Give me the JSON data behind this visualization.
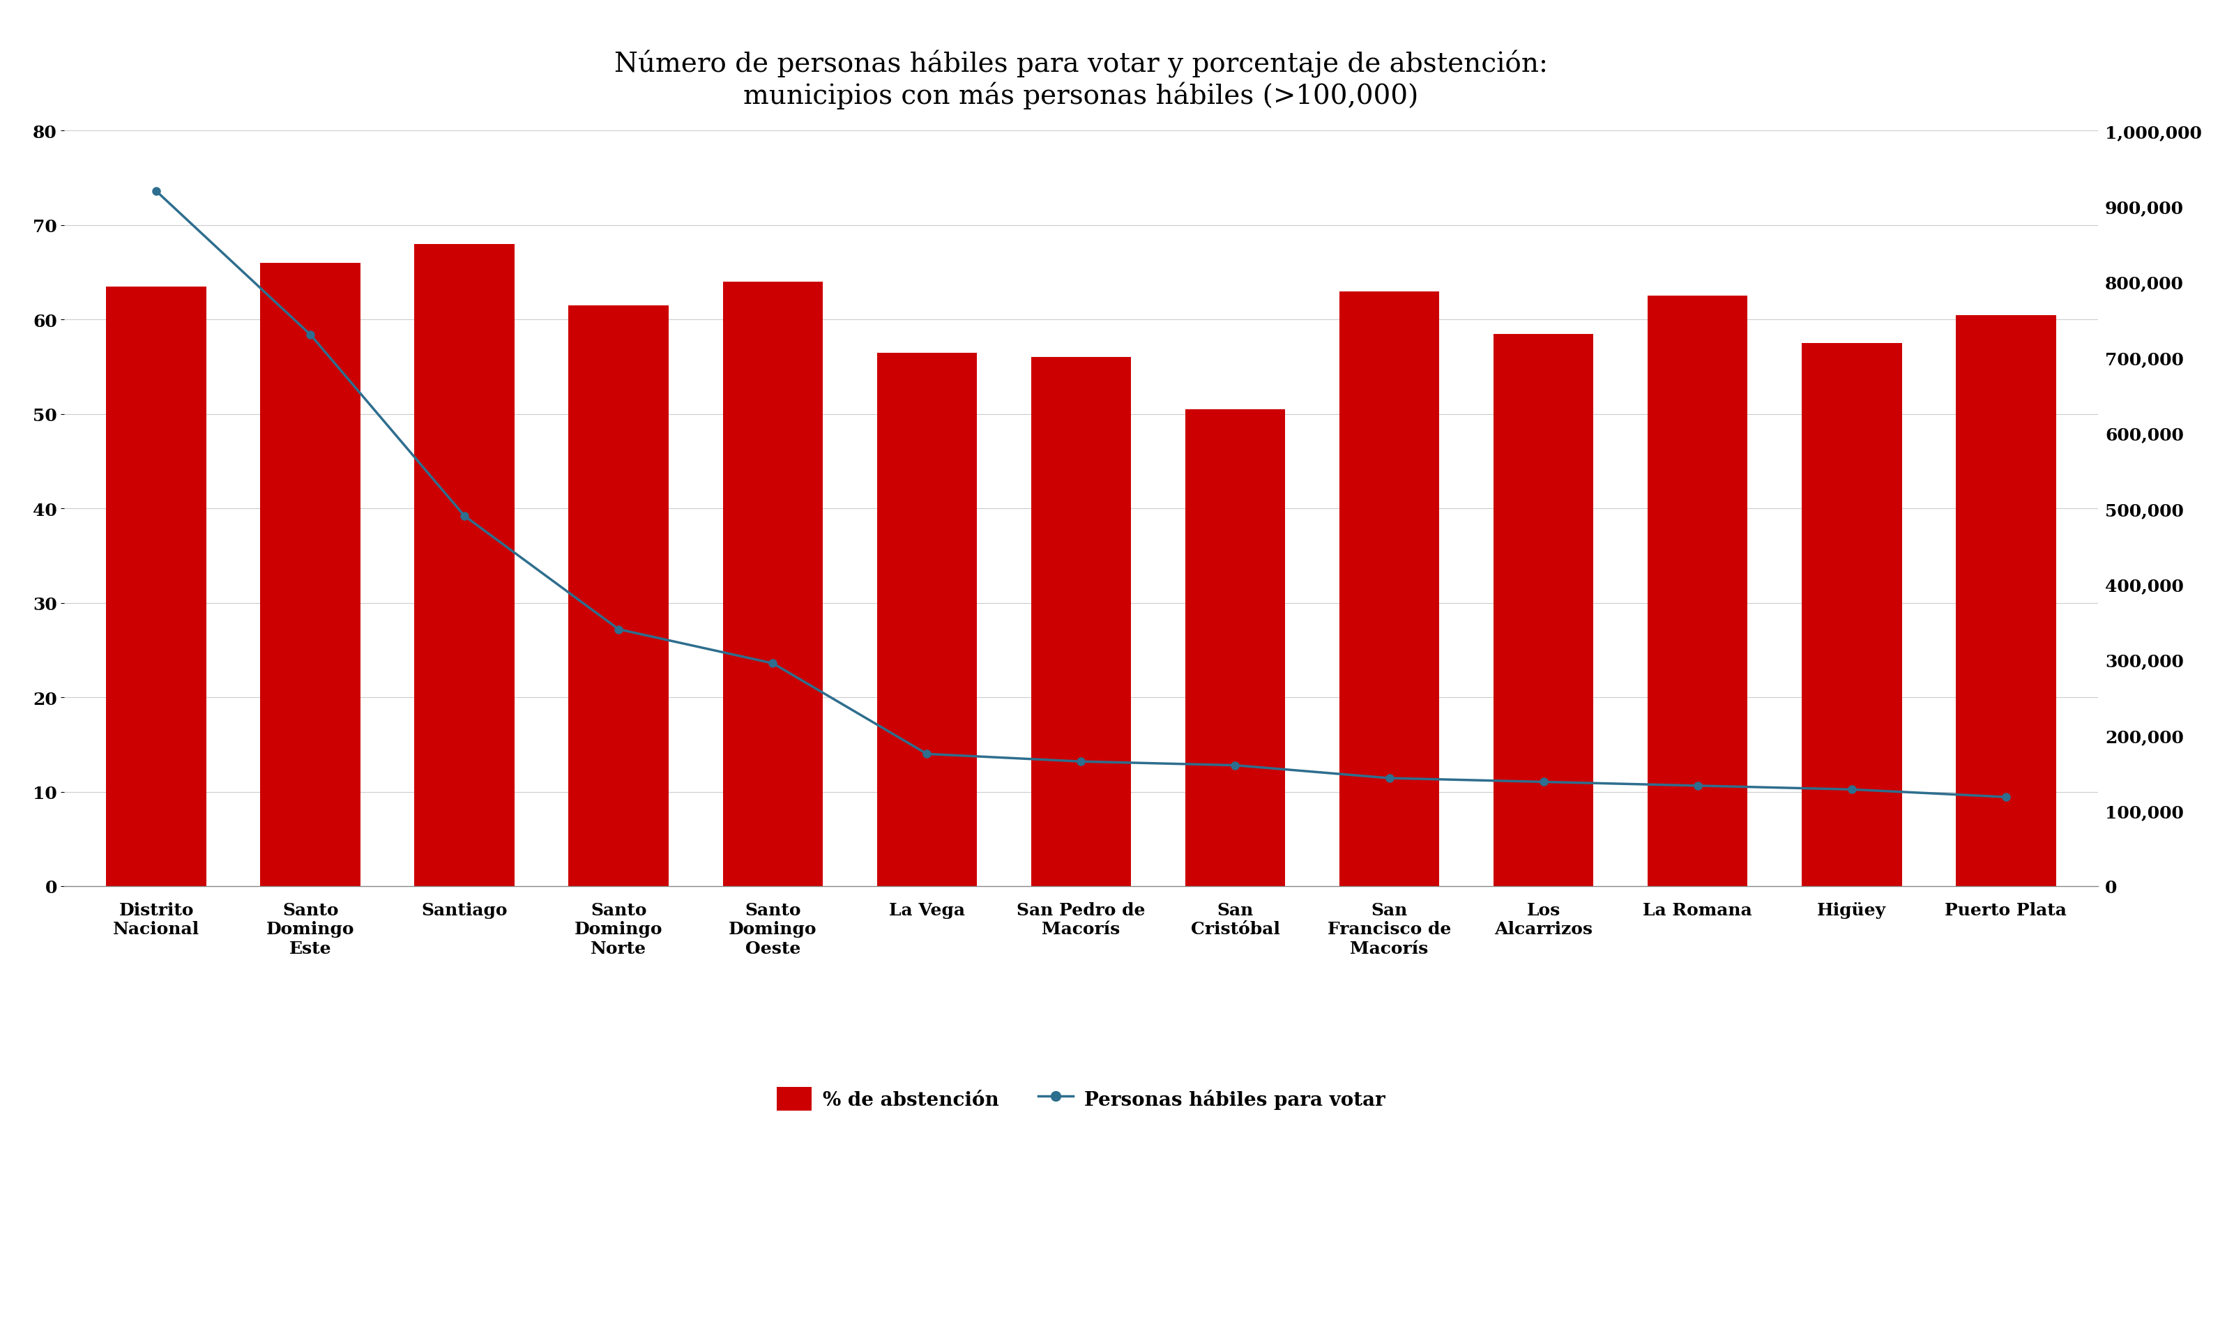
{
  "categories": [
    "Distrito\nNacional",
    "Santo\nDomingo\nEste",
    "Santiago",
    "Santo\nDomingo\nNorte",
    "Santo\nDomingo\nOeste",
    "La Vega",
    "San Pedro de\nMacorís",
    "San\nCristóbal",
    "San\nFrancisco de\nMacorís",
    "Los\nAlcarrizos",
    "La Romana",
    "Higüey",
    "Puerto Plata"
  ],
  "abstention_pct": [
    63.5,
    66.0,
    68.0,
    61.5,
    64.0,
    56.5,
    56.0,
    50.5,
    63.0,
    58.5,
    62.5,
    57.5,
    60.5
  ],
  "eligible_voters": [
    920000,
    730000,
    490000,
    340000,
    295000,
    175000,
    165000,
    160000,
    143000,
    138000,
    133000,
    128000,
    118000
  ],
  "bar_color": "#cc0000",
  "line_color": "#2e6e8e",
  "title_line1": "Número de personas hábiles para votar y porcentaje de abstención:",
  "title_line2": "municipios con más personas hábiles (>100,000)",
  "ylim_left": [
    0,
    80
  ],
  "ylim_right": [
    0,
    1000000
  ],
  "yticks_left": [
    0,
    10,
    20,
    30,
    40,
    50,
    60,
    70,
    80
  ],
  "yticks_right": [
    0,
    100000,
    200000,
    300000,
    400000,
    500000,
    600000,
    700000,
    800000,
    900000,
    1000000
  ],
  "legend_bar_label": "% de abstención",
  "legend_line_label": "Personas hábiles para votar",
  "background_color": "#ffffff",
  "title_fontsize": 28,
  "tick_fontsize": 18,
  "legend_fontsize": 20
}
